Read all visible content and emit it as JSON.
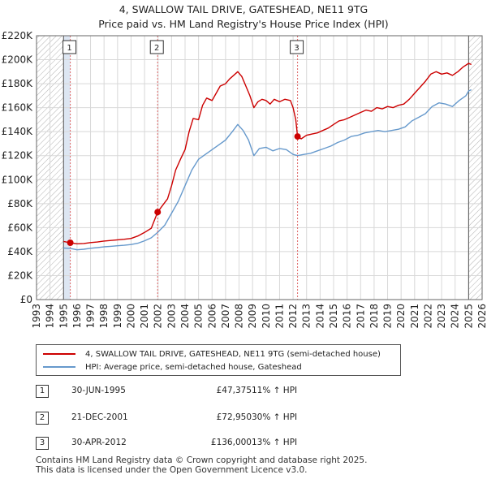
{
  "title_line1": "4, SWALLOW TAIL DRIVE, GATESHEAD, NE11 9TG",
  "title_line2": "Price paid vs. HM Land Registry's House Price Index (HPI)",
  "colors": {
    "price": "#cc0000",
    "hpi": "#6699cc",
    "band": "#dde6f2",
    "hatch": "#b0b0b0",
    "grid": "#d8d8d8",
    "marker_line": "#dd6666"
  },
  "legend": {
    "price_label": "4, SWALLOW TAIL DRIVE, GATESHEAD, NE11 9TG (semi-detached house)",
    "hpi_label": "HPI: Average price, semi-detached house, Gateshead"
  },
  "sales": [
    {
      "num": "1",
      "date": "30-JUN-1995",
      "price": "£47,375",
      "hpi": "11% ↑ HPI"
    },
    {
      "num": "2",
      "date": "21-DEC-2001",
      "price": "£72,950",
      "hpi": "30% ↑ HPI"
    },
    {
      "num": "3",
      "date": "30-APR-2012",
      "price": "£136,000",
      "hpi": "13% ↑ HPI"
    }
  ],
  "footer_line1": "Contains HM Land Registry data © Crown copyright and database right 2025.",
  "footer_line2": "This data is licensed under the Open Government Licence v3.0.",
  "chart_data": {
    "type": "line",
    "title": "4, SWALLOW TAIL DRIVE, GATESHEAD, NE11 9TG",
    "subtitle": "Price paid vs. HM Land Registry's House Price Index (HPI)",
    "xlim": [
      1993,
      2026
    ],
    "ylim": [
      0,
      220000
    ],
    "x_ticks": [
      "1993",
      "1994",
      "1995",
      "1996",
      "1997",
      "1998",
      "1999",
      "2000",
      "2001",
      "2002",
      "2003",
      "2004",
      "2005",
      "2006",
      "2007",
      "2008",
      "2009",
      "2010",
      "2011",
      "2012",
      "2013",
      "2014",
      "2015",
      "2016",
      "2017",
      "2018",
      "2019",
      "2020",
      "2021",
      "2022",
      "2023",
      "2024",
      "2025",
      "2026"
    ],
    "y_ticks": [
      {
        "value": 0,
        "label": "£0"
      },
      {
        "value": 20000,
        "label": "£20K"
      },
      {
        "value": 40000,
        "label": "£40K"
      },
      {
        "value": 60000,
        "label": "£60K"
      },
      {
        "value": 80000,
        "label": "£80K"
      },
      {
        "value": 100000,
        "label": "£100K"
      },
      {
        "value": 120000,
        "label": "£120K"
      },
      {
        "value": 140000,
        "label": "£140K"
      },
      {
        "value": 160000,
        "label": "£160K"
      },
      {
        "value": 180000,
        "label": "£180K"
      },
      {
        "value": 200000,
        "label": "£200K"
      },
      {
        "value": 220000,
        "label": "£220K"
      }
    ],
    "hatched_ranges": [
      [
        1993.0,
        1995.0
      ],
      [
        2025.0,
        2026.0
      ]
    ],
    "highlight_ranges": [
      [
        1995.0,
        1995.5
      ],
      [
        2001.97,
        2001.97
      ],
      [
        2012.33,
        2012.33
      ]
    ],
    "sale_points": [
      {
        "label": "1",
        "x": 1995.5,
        "y": 47375
      },
      {
        "label": "2",
        "x": 2001.97,
        "y": 72950
      },
      {
        "label": "3",
        "x": 2012.33,
        "y": 136000
      }
    ],
    "series": [
      {
        "name": "4, SWALLOW TAIL DRIVE, GATESHEAD, NE11 9TG (semi-detached house)",
        "color": "#cc0000",
        "points": [
          [
            1995.0,
            48500
          ],
          [
            1995.5,
            47375
          ],
          [
            1996.0,
            46500
          ],
          [
            1996.5,
            46800
          ],
          [
            1997.0,
            47500
          ],
          [
            1997.5,
            48000
          ],
          [
            1998.0,
            48800
          ],
          [
            1998.5,
            49300
          ],
          [
            1999.0,
            49800
          ],
          [
            1999.5,
            50300
          ],
          [
            2000.0,
            51000
          ],
          [
            2000.5,
            53000
          ],
          [
            2001.0,
            56000
          ],
          [
            2001.5,
            59500
          ],
          [
            2001.97,
            72950
          ],
          [
            2002.3,
            78000
          ],
          [
            2002.7,
            84000
          ],
          [
            2003.0,
            95000
          ],
          [
            2003.3,
            108000
          ],
          [
            2003.7,
            118000
          ],
          [
            2004.0,
            125000
          ],
          [
            2004.3,
            140000
          ],
          [
            2004.6,
            151000
          ],
          [
            2005.0,
            150000
          ],
          [
            2005.3,
            162000
          ],
          [
            2005.6,
            168000
          ],
          [
            2006.0,
            166000
          ],
          [
            2006.3,
            172000
          ],
          [
            2006.6,
            178000
          ],
          [
            2007.0,
            180000
          ],
          [
            2007.3,
            184000
          ],
          [
            2007.6,
            187000
          ],
          [
            2007.9,
            190000
          ],
          [
            2008.2,
            186000
          ],
          [
            2008.5,
            178000
          ],
          [
            2008.8,
            170000
          ],
          [
            2009.1,
            160000
          ],
          [
            2009.4,
            165000
          ],
          [
            2009.7,
            167000
          ],
          [
            2010.0,
            166000
          ],
          [
            2010.3,
            163000
          ],
          [
            2010.6,
            167000
          ],
          [
            2011.0,
            165000
          ],
          [
            2011.4,
            167000
          ],
          [
            2011.8,
            166000
          ],
          [
            2012.0,
            160000
          ],
          [
            2012.2,
            150000
          ],
          [
            2012.33,
            136000
          ],
          [
            2012.6,
            134000
          ],
          [
            2013.0,
            137000
          ],
          [
            2013.4,
            138000
          ],
          [
            2013.8,
            139000
          ],
          [
            2014.2,
            141000
          ],
          [
            2014.6,
            143000
          ],
          [
            2015.0,
            146000
          ],
          [
            2015.4,
            149000
          ],
          [
            2015.8,
            150000
          ],
          [
            2016.2,
            152000
          ],
          [
            2016.6,
            154000
          ],
          [
            2017.0,
            156000
          ],
          [
            2017.4,
            158000
          ],
          [
            2017.8,
            157000
          ],
          [
            2018.2,
            160000
          ],
          [
            2018.6,
            159000
          ],
          [
            2019.0,
            161000
          ],
          [
            2019.4,
            160000
          ],
          [
            2019.8,
            162000
          ],
          [
            2020.2,
            163000
          ],
          [
            2020.6,
            167000
          ],
          [
            2021.0,
            172000
          ],
          [
            2021.4,
            177000
          ],
          [
            2021.8,
            182000
          ],
          [
            2022.2,
            188000
          ],
          [
            2022.6,
            190000
          ],
          [
            2023.0,
            188000
          ],
          [
            2023.4,
            189000
          ],
          [
            2023.8,
            187000
          ],
          [
            2024.2,
            190000
          ],
          [
            2024.6,
            194000
          ],
          [
            2025.0,
            197000
          ],
          [
            2025.2,
            196000
          ]
        ]
      },
      {
        "name": "HPI: Average price, semi-detached house, Gateshead",
        "color": "#6699cc",
        "points": [
          [
            1995.0,
            43000
          ],
          [
            1995.5,
            42700
          ],
          [
            1996.0,
            41500
          ],
          [
            1996.5,
            42000
          ],
          [
            1997.0,
            42800
          ],
          [
            1997.5,
            43300
          ],
          [
            1998.0,
            44000
          ],
          [
            1998.5,
            44400
          ],
          [
            1999.0,
            44900
          ],
          [
            1999.5,
            45300
          ],
          [
            2000.0,
            45900
          ],
          [
            2000.5,
            47000
          ],
          [
            2001.0,
            49000
          ],
          [
            2001.5,
            51500
          ],
          [
            2001.97,
            56000
          ],
          [
            2002.5,
            62000
          ],
          [
            2003.0,
            72000
          ],
          [
            2003.5,
            82000
          ],
          [
            2004.0,
            95000
          ],
          [
            2004.5,
            108000
          ],
          [
            2005.0,
            117000
          ],
          [
            2005.5,
            121000
          ],
          [
            2006.0,
            125000
          ],
          [
            2006.5,
            129000
          ],
          [
            2007.0,
            133000
          ],
          [
            2007.5,
            140000
          ],
          [
            2007.9,
            146000
          ],
          [
            2008.3,
            141000
          ],
          [
            2008.7,
            133000
          ],
          [
            2009.1,
            120000
          ],
          [
            2009.5,
            126000
          ],
          [
            2010.0,
            127000
          ],
          [
            2010.5,
            124000
          ],
          [
            2011.0,
            126000
          ],
          [
            2011.5,
            125000
          ],
          [
            2012.0,
            121000
          ],
          [
            2012.33,
            120000
          ],
          [
            2012.8,
            121000
          ],
          [
            2013.3,
            122000
          ],
          [
            2013.8,
            124000
          ],
          [
            2014.3,
            126000
          ],
          [
            2014.8,
            128000
          ],
          [
            2015.3,
            131000
          ],
          [
            2015.8,
            133000
          ],
          [
            2016.3,
            136000
          ],
          [
            2016.8,
            137000
          ],
          [
            2017.3,
            139000
          ],
          [
            2017.8,
            140000
          ],
          [
            2018.3,
            141000
          ],
          [
            2018.8,
            140000
          ],
          [
            2019.3,
            141000
          ],
          [
            2019.8,
            142000
          ],
          [
            2020.3,
            144000
          ],
          [
            2020.8,
            149000
          ],
          [
            2021.3,
            152000
          ],
          [
            2021.8,
            155000
          ],
          [
            2022.3,
            161000
          ],
          [
            2022.8,
            164000
          ],
          [
            2023.3,
            163000
          ],
          [
            2023.8,
            161000
          ],
          [
            2024.3,
            166000
          ],
          [
            2024.8,
            170000
          ],
          [
            2025.0,
            174000
          ],
          [
            2025.2,
            175000
          ]
        ]
      }
    ]
  }
}
